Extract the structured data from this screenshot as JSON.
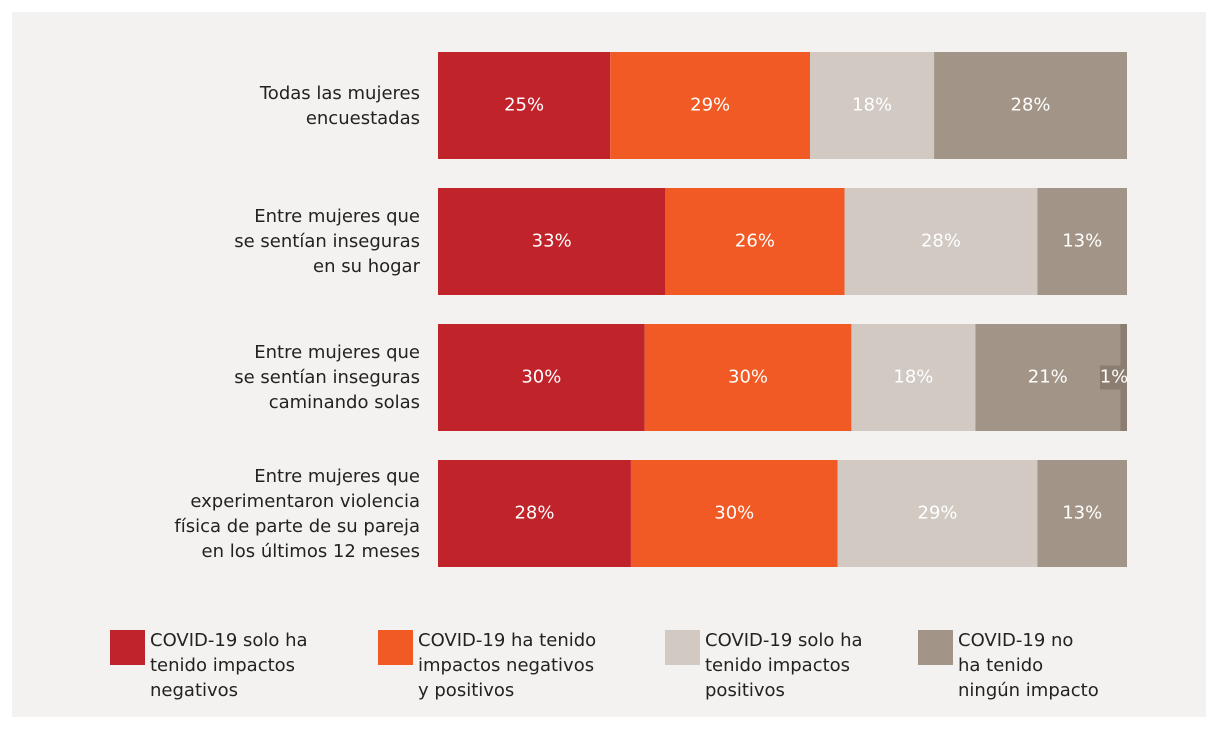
{
  "chart_data": {
    "type": "stacked_barh",
    "categories": [
      "Todas las mujeres\nencuestadas",
      "Entre mujeres que\nse sentían inseguras\nen su hogar",
      "Entre mujeres que\nse sentían inseguras\ncaminando solas",
      "Entre mujeres que\nexperimentaron violencia\nfísica de parte de su pareja\nen los últimos 12 meses"
    ],
    "xlim": [
      0,
      100
    ],
    "series": [
      {
        "name": "COVID-19 solo ha\ntenido impactos\nnegativos",
        "color": "#c1232b",
        "values": [
          25,
          33,
          30,
          28
        ],
        "value_labels": [
          "25%",
          "33%",
          "30%",
          "28%"
        ]
      },
      {
        "name": "COVID-19 ha tenido\nimpactos negativos\ny positivos",
        "color": "#f15a24",
        "values": [
          29,
          26,
          30,
          30
        ],
        "value_labels": [
          "29%",
          "26%",
          "30%",
          "30%"
        ]
      },
      {
        "name": "COVID-19 solo ha\ntenido impactos\npositivos",
        "color": "#d1c9c2",
        "values": [
          18,
          28,
          18,
          29
        ],
        "value_labels": [
          "18%",
          "28%",
          "18%",
          "29%"
        ]
      },
      {
        "name": "COVID-19 no\nha tenido\nningún impacto",
        "color": "#a29587",
        "values": [
          28,
          13,
          21,
          13
        ],
        "value_labels": [
          "28%",
          "13%",
          "21%",
          "13%"
        ]
      },
      {
        "color": "#8b7e70",
        "values": [
          null,
          null,
          1,
          null
        ],
        "value_labels": [
          null,
          null,
          "1%",
          null
        ]
      }
    ]
  }
}
